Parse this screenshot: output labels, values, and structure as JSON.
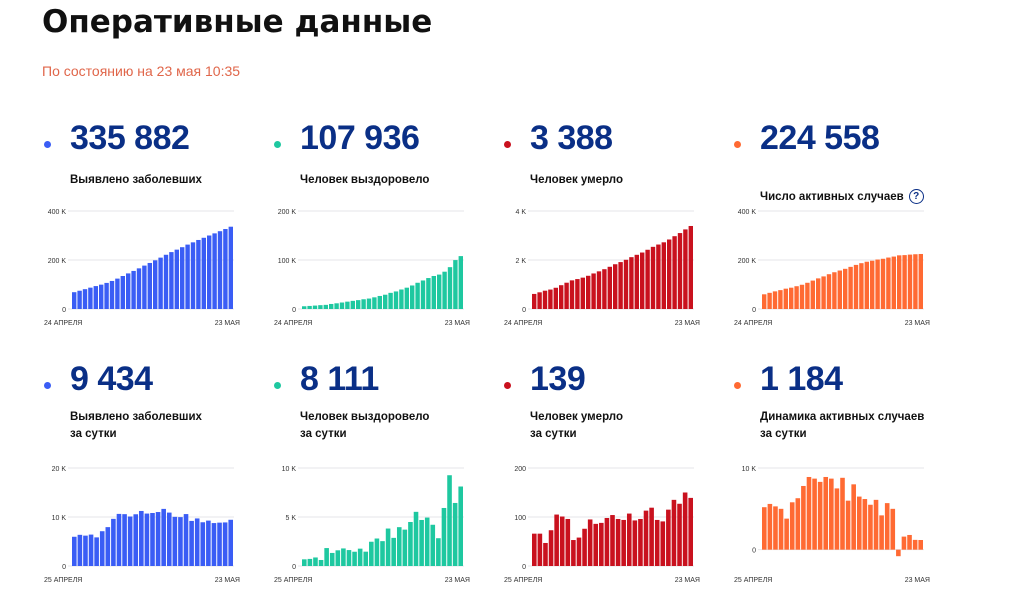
{
  "title": "Оперативные данные",
  "updated": "По состоянию на 23 мая 10:35",
  "colors": {
    "title": "#111111",
    "updated": "#e0664a",
    "numbers": "#0a2f86",
    "cases": "#3a5df5",
    "recovered": "#1ec8a0",
    "deaths": "#c9111e",
    "active": "#ff6a33"
  },
  "cards": [
    {
      "id": "cases-total",
      "value": "335 882",
      "label": "Выявлено заболевших",
      "help": false,
      "color": "#3a5df5"
    },
    {
      "id": "recovered-total",
      "value": "107 936",
      "label": "Человек выздоровело",
      "help": false,
      "color": "#1ec8a0"
    },
    {
      "id": "deaths-total",
      "value": "3 388",
      "label": "Человек умерло",
      "help": false,
      "color": "#c9111e"
    },
    {
      "id": "active-total",
      "value": "224 558",
      "label": "Число активных случаев",
      "help": true,
      "help_glyph": "?",
      "color": "#ff6a33"
    },
    {
      "id": "cases-daily",
      "value": "9 434",
      "label": "Выявлено заболевших\nза сутки",
      "help": false,
      "color": "#3a5df5"
    },
    {
      "id": "recovered-daily",
      "value": "8 111",
      "label": "Человек выздоровело\nза сутки",
      "help": false,
      "color": "#1ec8a0"
    },
    {
      "id": "deaths-daily",
      "value": "139",
      "label": "Человек умерло\nза сутки",
      "help": false,
      "color": "#c9111e"
    },
    {
      "id": "active-daily",
      "value": "1 184",
      "label": "Динамика активных случаев\nза сутки",
      "help": false,
      "color": "#ff6a33"
    }
  ],
  "chart_data": [
    {
      "type": "bar",
      "name": "cases-total",
      "color": "#3a5df5",
      "ylim": [
        0,
        400000
      ],
      "yticks": [
        0,
        200000,
        400000
      ],
      "yticklabels": [
        "0",
        "200 K",
        "400 K"
      ],
      "xlabel_start": "24 АПРЕЛЯ",
      "xlabel_end": "23 МАЯ",
      "grid": true,
      "values": [
        68622,
        74588,
        80949,
        87147,
        93558,
        99399,
        106498,
        114431,
        124054,
        134687,
        145268,
        155370,
        165929,
        177160,
        187859,
        198676,
        209688,
        221344,
        232243,
        242271,
        252245,
        262843,
        272043,
        281752,
        290678,
        299941,
        308705,
        317554,
        326448,
        335882
      ]
    },
    {
      "type": "bar",
      "name": "recovered-total",
      "color": "#1ec8a0",
      "ylim": [
        0,
        200000
      ],
      "yticks": [
        0,
        100000,
        200000
      ],
      "yticklabels": [
        "0",
        "100 K",
        "200 K"
      ],
      "xlabel_start": "24 АПРЕЛЯ",
      "xlabel_end": "23 МАЯ",
      "grid": true,
      "values": [
        5568,
        6250,
        6973,
        7843,
        8456,
        10286,
        11619,
        13220,
        15013,
        16639,
        18095,
        19865,
        21327,
        23803,
        26608,
        29145,
        32967,
        35838,
        39801,
        43512,
        48003,
        53530,
        58226,
        63166,
        67373,
        70209,
        76130,
        85392,
        99825,
        107936
      ]
    },
    {
      "type": "bar",
      "name": "deaths-total",
      "color": "#c9111e",
      "ylim": [
        0,
        4000
      ],
      "yticks": [
        0,
        2000,
        4000
      ],
      "yticklabels": [
        "0",
        "2 K",
        "4 K"
      ],
      "xlabel_start": "24 АПРЕЛЯ",
      "xlabel_end": "23 МАЯ",
      "grid": true,
      "values": [
        615,
        681,
        747,
        794,
        867,
        972,
        1073,
        1169,
        1222,
        1280,
        1356,
        1451,
        1537,
        1625,
        1723,
        1827,
        1915,
        2009,
        2116,
        2212,
        2305,
        2418,
        2537,
        2631,
        2722,
        2837,
        2972,
        3099,
        3249,
        3388
      ]
    },
    {
      "type": "bar",
      "name": "active-total",
      "color": "#ff6a33",
      "ylim": [
        0,
        400000
      ],
      "yticks": [
        0,
        200000,
        400000
      ],
      "yticklabels": [
        "0",
        "200 K",
        "400 K"
      ],
      "xlabel_start": "24 АПРЕЛЯ",
      "xlabel_end": "23 МАЯ",
      "grid": true,
      "values": [
        60000,
        66000,
        72000,
        77000,
        83000,
        87000,
        93000,
        99000,
        107000,
        116000,
        125000,
        133000,
        142000,
        150000,
        157000,
        164000,
        172000,
        180000,
        187000,
        193000,
        197000,
        202000,
        205000,
        210000,
        214000,
        219000,
        220000,
        222000,
        223500,
        224558
      ]
    },
    {
      "type": "bar",
      "name": "cases-daily",
      "color": "#3a5df5",
      "ylim": [
        0,
        20000
      ],
      "yticks": [
        0,
        10000,
        20000
      ],
      "yticklabels": [
        "0",
        "10 K",
        "20 K"
      ],
      "xlabel_start": "25 АПРЕЛЯ",
      "xlabel_end": "23 МАЯ",
      "grid": true,
      "values": [
        5966,
        6361,
        6198,
        6411,
        5841,
        7099,
        7933,
        9623,
        10633,
        10581,
        10102,
        10559,
        11231,
        10699,
        10817,
        11012,
        11656,
        10899,
        10028,
        9974,
        10598,
        9200,
        9709,
        8926,
        9263,
        8764,
        8849,
        8894,
        9434
      ]
    },
    {
      "type": "bar",
      "name": "recovered-daily",
      "color": "#1ec8a0",
      "ylim": [
        0,
        10000
      ],
      "yticks": [
        0,
        5000,
        10000
      ],
      "yticklabels": [
        "0",
        "5 K",
        "10 K"
      ],
      "xlabel_start": "25 АПРЕЛЯ",
      "xlabel_end": "23 МАЯ",
      "grid": true,
      "values": [
        682,
        723,
        870,
        613,
        1830,
        1333,
        1601,
        1793,
        1626,
        1456,
        1770,
        1462,
        2476,
        2805,
        2537,
        3822,
        2871,
        3963,
        3711,
        4491,
        5527,
        4696,
        4940,
        4207,
        2836,
        5921,
        9262,
        6433,
        8111
      ]
    },
    {
      "type": "bar",
      "name": "deaths-daily",
      "color": "#c9111e",
      "ylim": [
        0,
        200
      ],
      "yticks": [
        0,
        100,
        200
      ],
      "yticklabels": [
        "0",
        "100",
        "200"
      ],
      "xlabel_start": "25 АПРЕЛЯ",
      "xlabel_end": "23 МАЯ",
      "grid": true,
      "values": [
        66,
        66,
        47,
        73,
        105,
        101,
        96,
        53,
        58,
        76,
        95,
        86,
        88,
        98,
        104,
        96,
        94,
        107,
        93,
        96,
        113,
        119,
        94,
        91,
        115,
        135,
        127,
        150,
        139
      ]
    },
    {
      "type": "bar",
      "name": "active-daily",
      "color": "#ff6a33",
      "ylim": [
        -2000,
        10000
      ],
      "yticks": [
        0,
        10000
      ],
      "yticklabels": [
        "0",
        "10 K"
      ],
      "xlabel_start": "25 АПРЕЛЯ",
      "xlabel_end": "23 МАЯ",
      "grid": true,
      "values": [
        5200,
        5600,
        5300,
        5000,
        3800,
        5800,
        6300,
        7800,
        8900,
        8700,
        8300,
        8900,
        8700,
        7500,
        8800,
        6000,
        8000,
        6500,
        6200,
        5500,
        6100,
        4200,
        5700,
        5000,
        -800,
        1600,
        1800,
        1200,
        1184
      ]
    }
  ]
}
